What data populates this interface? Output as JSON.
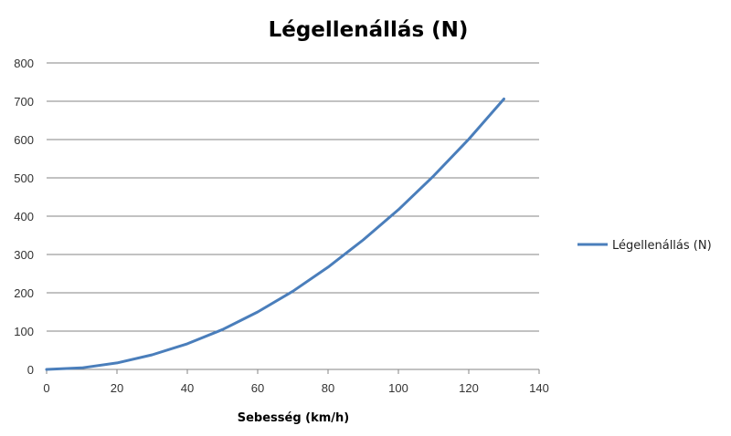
{
  "chart_data": {
    "type": "line",
    "title": "Légellenállás (N)",
    "xlabel": "Sebesség (km/h)",
    "ylabel": "",
    "xlim": [
      0,
      140
    ],
    "ylim": [
      0,
      800
    ],
    "xticks": [
      0,
      20,
      40,
      60,
      80,
      100,
      120,
      140
    ],
    "yticks": [
      0,
      100,
      200,
      300,
      400,
      500,
      600,
      700,
      800
    ],
    "grid": true,
    "legend_position": "right",
    "series": [
      {
        "name": "Légellenállás (N)",
        "color": "#4a7ebb",
        "x": [
          0,
          10,
          20,
          30,
          40,
          50,
          60,
          70,
          80,
          90,
          100,
          110,
          120,
          130
        ],
        "y": [
          0,
          4,
          17,
          38,
          67,
          104,
          150,
          204,
          267,
          338,
          417,
          505,
          601,
          706
        ]
      }
    ]
  }
}
